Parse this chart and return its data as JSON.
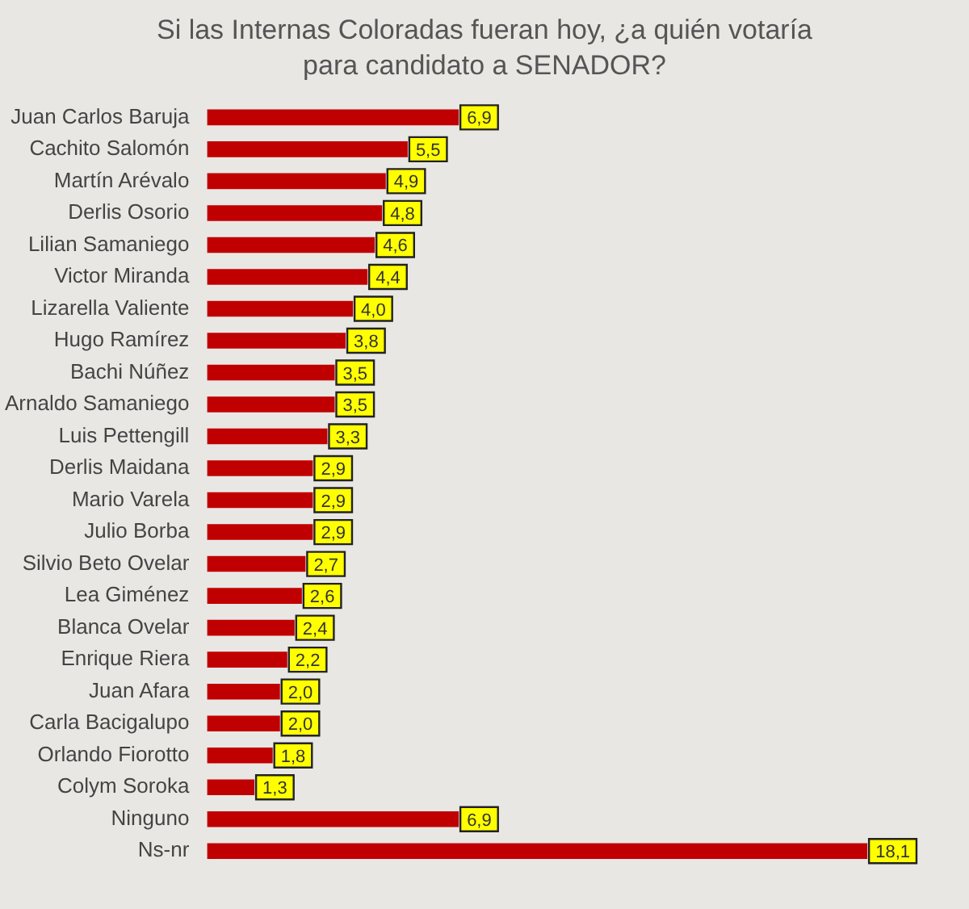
{
  "chart_data": {
    "type": "bar",
    "orientation": "horizontal",
    "title": "Si las Internas Coloradas fueran hoy, ¿a quién votaría para candidato a SENADOR?",
    "categories": [
      "Juan Carlos Baruja",
      "Cachito Salomón",
      "Martín Arévalo",
      "Derlis Osorio",
      "Lilian Samaniego",
      "Victor Miranda",
      "Lizarella Valiente",
      "Hugo Ramírez",
      "Bachi Núñez",
      "Arnaldo Samaniego",
      "Luis Pettengill",
      "Derlis Maidana",
      "Mario Varela",
      "Julio Borba",
      "Silvio Beto Ovelar",
      "Lea Giménez",
      "Blanca Ovelar",
      "Enrique Riera",
      "Juan Afara",
      "Carla Bacigalupo",
      "Orlando Fiorotto",
      "Colym Soroka",
      "Ninguno",
      "Ns-nr"
    ],
    "values": [
      6.9,
      5.5,
      4.9,
      4.8,
      4.6,
      4.4,
      4.0,
      3.8,
      3.5,
      3.5,
      3.3,
      2.9,
      2.9,
      2.9,
      2.7,
      2.6,
      2.4,
      2.2,
      2.0,
      2.0,
      1.8,
      1.3,
      6.9,
      18.1
    ],
    "value_labels": [
      "6,9",
      "5,5",
      "4,9",
      "4,8",
      "4,6",
      "4,4",
      "4,0",
      "3,8",
      "3,5",
      "3,5",
      "3,3",
      "2,9",
      "2,9",
      "2,9",
      "2,7",
      "2,6",
      "2,4",
      "2,2",
      "2,0",
      "2,0",
      "1,8",
      "1,3",
      "6,9",
      "18,1"
    ],
    "color": "#c00000",
    "tick_labels": "y",
    "grid": false,
    "legend": false
  }
}
